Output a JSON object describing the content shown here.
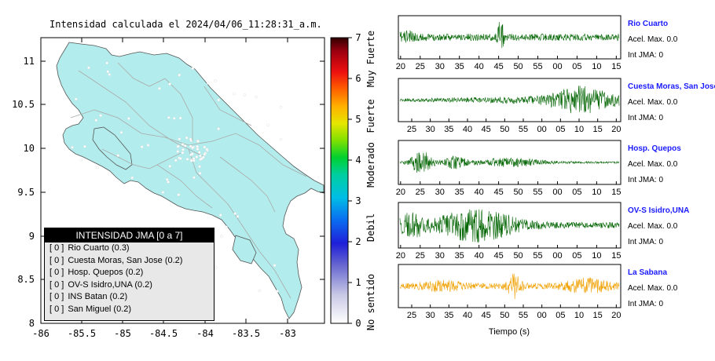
{
  "map": {
    "title": "Intensidad calculada el 2024/04/06_11:28:31_a.m.",
    "lon_ticks": [
      "-86",
      "-85.5",
      "-85",
      "-84.5",
      "-84",
      "-83.5",
      "-83"
    ],
    "lat_ticks": [
      "8",
      "8.5",
      "9",
      "9.5",
      "10",
      "10.5",
      "11"
    ],
    "land_color": "#b3ecec",
    "water_color": "#ffffff",
    "road_color": "#b0b0b0"
  },
  "colorbar": {
    "ticks": [
      "0",
      "1",
      "2",
      "3",
      "4",
      "5",
      "6",
      "7"
    ],
    "labels": [
      "No sentido",
      "Debil",
      "Moderado",
      "Fuerte",
      "Muy Fuerte"
    ]
  },
  "legend": {
    "title": "INTENSIDAD JMA [0 a 7]",
    "items": [
      {
        "badge": "[ 0 ]",
        "label": "Rio Cuarto (0.3)"
      },
      {
        "badge": "[ 0 ]",
        "label": "Cuesta Moras, San Jose (0.2)"
      },
      {
        "badge": "[ 0 ]",
        "label": "Hosp. Quepos (0.2)"
      },
      {
        "badge": "[ 0 ]",
        "label": "OV-S Isidro,UNA (0.2)"
      },
      {
        "badge": "[ 0 ]",
        "label": "INS Batan (0.2)"
      },
      {
        "badge": "[ 0 ]",
        "label": "San Miguel (0.2)"
      }
    ]
  },
  "chart_data": {
    "type": "line",
    "xlabel": "Tiempo (s)",
    "series": [
      {
        "name": "Rio Cuarto",
        "accel_text": "Acel. Max. 0.0",
        "jma_text": "Int JMA: 0",
        "color": "#006400",
        "x_ticks": [
          "20",
          "25",
          "30",
          "35",
          "40",
          "45",
          "50",
          "55",
          "00",
          "05",
          "10",
          "15"
        ]
      },
      {
        "name": "Cuesta Moras, San Jose",
        "accel_text": "Acel. Max. 0.0",
        "jma_text": "Int JMA: 0",
        "color": "#006400",
        "x_ticks": [
          "25",
          "30",
          "35",
          "40",
          "45",
          "50",
          "55",
          "00",
          "05",
          "10",
          "15",
          "20"
        ]
      },
      {
        "name": "Hosp. Quepos",
        "accel_text": "Acel. Max. 0.0",
        "jma_text": "Int JMA: 0",
        "color": "#006400",
        "x_ticks": [
          "20",
          "25",
          "30",
          "35",
          "40",
          "45",
          "50",
          "55",
          "00",
          "05",
          "10",
          "15"
        ]
      },
      {
        "name": "OV-S Isidro,UNA",
        "accel_text": "Acel. Max. 0.0",
        "jma_text": "Int JMA: 0",
        "color": "#006400",
        "x_ticks": [
          "20",
          "25",
          "30",
          "35",
          "40",
          "45",
          "50",
          "55",
          "00",
          "05",
          "10",
          "15"
        ]
      },
      {
        "name": "La Sabana",
        "accel_text": "Acel. Max. 0.0",
        "jma_text": "Int JMA: 0",
        "color": "#f0a000",
        "x_ticks": [
          "25",
          "30",
          "35",
          "40",
          "45",
          "50",
          "55",
          "00",
          "05",
          "10",
          "15",
          "20"
        ]
      }
    ]
  }
}
